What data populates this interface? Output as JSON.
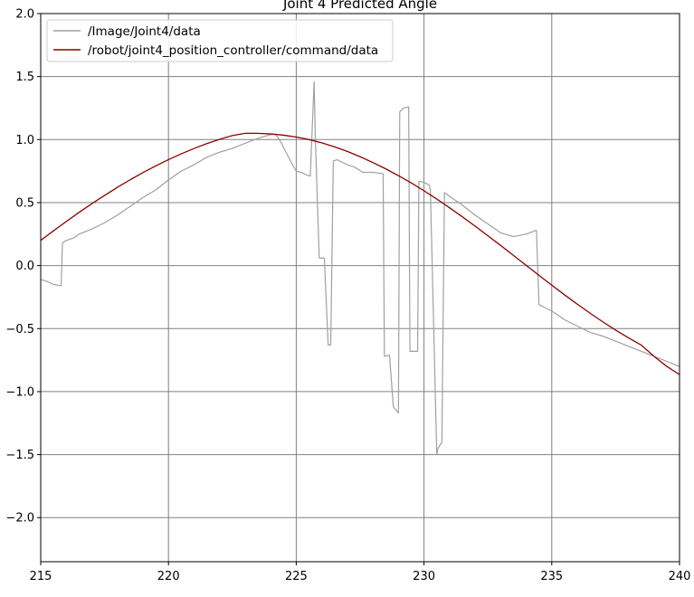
{
  "chart_data": {
    "type": "line",
    "title": "Joint 4 Predicted Angle",
    "xlabel": "",
    "ylabel": "",
    "xlim": [
      215,
      240
    ],
    "ylim": [
      -2.35,
      2.0
    ],
    "x_ticks": [
      215,
      220,
      225,
      230,
      235,
      240
    ],
    "y_ticks": [
      -2.0,
      -1.5,
      -1.0,
      -0.5,
      0.0,
      0.5,
      1.0,
      1.5,
      2.0
    ],
    "x_tick_labels": [
      "215",
      "220",
      "225",
      "230",
      "235",
      "240"
    ],
    "y_tick_labels": [
      "−2.0",
      "−1.5",
      "−1.0",
      "−0.5",
      "0.0",
      "0.5",
      "1.0",
      "1.5",
      "2.0"
    ],
    "grid": true,
    "legend_position": "top-left",
    "series": [
      {
        "name": "/Image/Joint4/data",
        "color": "#a0a0a0",
        "x": [
          215.0,
          215.3,
          215.5,
          215.8,
          215.85,
          216.0,
          216.3,
          216.5,
          217.0,
          217.5,
          218.0,
          218.5,
          219.0,
          219.5,
          220.0,
          220.5,
          221.0,
          221.5,
          222.0,
          222.5,
          223.0,
          223.5,
          224.0,
          224.2,
          224.4,
          224.6,
          224.8,
          225.0,
          225.2,
          225.4,
          225.55,
          225.7,
          225.75,
          225.9,
          226.1,
          226.25,
          226.35,
          226.45,
          226.6,
          226.8,
          227.0,
          227.3,
          227.6,
          228.0,
          228.4,
          228.45,
          228.65,
          228.8,
          229.0,
          229.05,
          229.2,
          229.4,
          229.45,
          229.6,
          229.75,
          229.8,
          230.0,
          230.2,
          230.25,
          230.5,
          230.55,
          230.7,
          230.8,
          231.0,
          231.5,
          232.0,
          232.5,
          233.0,
          233.5,
          234.0,
          234.4,
          234.5,
          234.8,
          235.0,
          235.5,
          236.0,
          236.5,
          237.0,
          237.5,
          238.0,
          238.5,
          239.0,
          239.5,
          240.0
        ],
        "y": [
          -0.11,
          -0.13,
          -0.15,
          -0.16,
          0.18,
          0.2,
          0.22,
          0.25,
          0.29,
          0.34,
          0.4,
          0.47,
          0.54,
          0.6,
          0.68,
          0.75,
          0.8,
          0.86,
          0.9,
          0.93,
          0.97,
          1.01,
          1.04,
          1.04,
          0.98,
          0.9,
          0.82,
          0.75,
          0.74,
          0.72,
          0.71,
          1.46,
          1.0,
          0.06,
          0.06,
          -0.63,
          -0.63,
          0.83,
          0.84,
          0.82,
          0.8,
          0.78,
          0.74,
          0.74,
          0.73,
          -0.72,
          -0.71,
          -1.12,
          -1.17,
          1.22,
          1.25,
          1.26,
          -0.68,
          -0.68,
          -0.68,
          0.67,
          0.66,
          0.64,
          0.6,
          -1.5,
          -1.45,
          -1.4,
          0.58,
          0.55,
          0.48,
          0.4,
          0.33,
          0.26,
          0.23,
          0.25,
          0.28,
          -0.31,
          -0.34,
          -0.36,
          -0.43,
          -0.48,
          -0.53,
          -0.56,
          -0.6,
          -0.64,
          -0.68,
          -0.72,
          -0.76,
          -0.8
        ]
      },
      {
        "name": "/robot/joint4_position_controller/command/data",
        "color": "#8b0000",
        "x": [
          215,
          215.5,
          216,
          216.5,
          217,
          217.5,
          218,
          218.5,
          219,
          219.5,
          220,
          220.5,
          221,
          221.5,
          222,
          222.5,
          223,
          223.5,
          224,
          224.5,
          225,
          225.5,
          226,
          226.5,
          227,
          227.5,
          228,
          228.5,
          229,
          229.5,
          230,
          230.5,
          231,
          231.5,
          232,
          232.5,
          233,
          233.5,
          234,
          234.5,
          235,
          235.5,
          236,
          236.5,
          237,
          237.5,
          238,
          238.5,
          239,
          239.5,
          240
        ],
        "y": [
          0.2,
          0.276,
          0.35,
          0.422,
          0.491,
          0.557,
          0.621,
          0.681,
          0.738,
          0.791,
          0.841,
          0.887,
          0.929,
          0.968,
          1.002,
          1.032,
          1.05,
          1.05,
          1.045,
          1.035,
          1.02,
          1.0,
          0.974,
          0.942,
          0.906,
          0.864,
          0.818,
          0.768,
          0.714,
          0.656,
          0.594,
          0.528,
          0.459,
          0.387,
          0.313,
          0.237,
          0.16,
          0.081,
          0.002,
          -0.077,
          -0.155,
          -0.232,
          -0.306,
          -0.378,
          -0.447,
          -0.512,
          -0.573,
          -0.63,
          -0.72,
          -0.8,
          -0.865
        ]
      }
    ]
  }
}
